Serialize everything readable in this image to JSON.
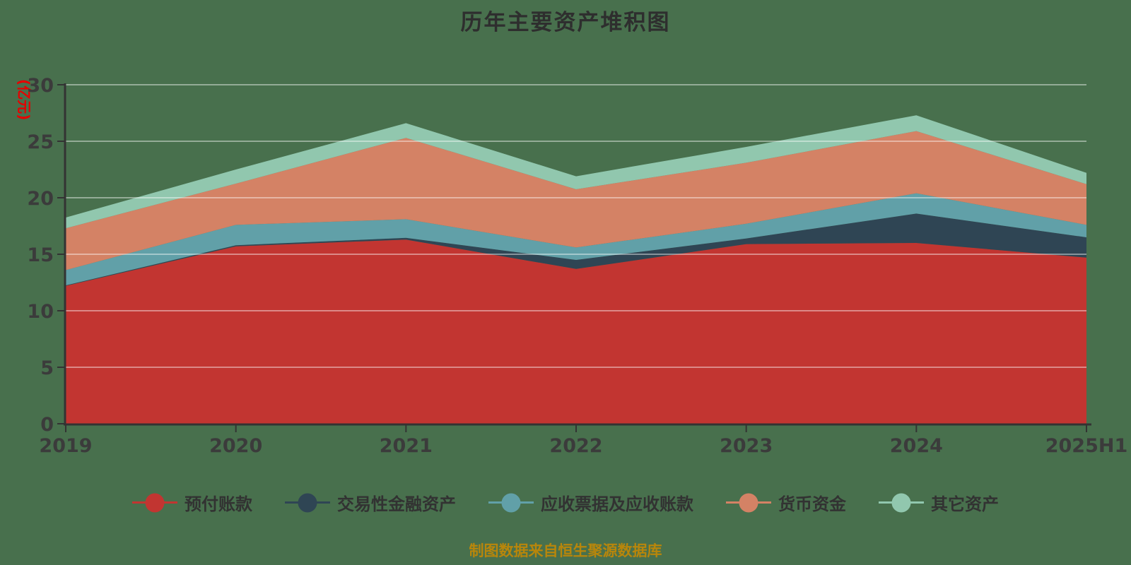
{
  "page": {
    "title": "历年主要资产堆积图",
    "y_axis_name": "(亿元)",
    "footer": "制图数据来自恒生聚源数据库",
    "background_color": "#48704d",
    "y_axis_name_color": "#e60000",
    "footer_color": "#b8860b",
    "axis_color": "#333333"
  },
  "chart_data": {
    "type": "area",
    "stacked": true,
    "title": "历年主要资产堆积图",
    "ylabel": "(亿元)",
    "xlabel": "",
    "categories": [
      "2019",
      "2020",
      "2021",
      "2022",
      "2023",
      "2024",
      "2025H1"
    ],
    "y_ticks": [
      0,
      5,
      10,
      15,
      20,
      25,
      30
    ],
    "ylim": [
      0,
      30
    ],
    "grid": true,
    "legend_position": "bottom",
    "series": [
      {
        "name": "预付账款",
        "color": "#c23531",
        "values": [
          12.2,
          15.7,
          16.3,
          13.7,
          15.9,
          16.0,
          14.7
        ]
      },
      {
        "name": "交易性金融资产",
        "color": "#2f4554",
        "values": [
          0.05,
          0.1,
          0.15,
          0.8,
          0.5,
          2.6,
          1.8
        ]
      },
      {
        "name": "应收票据及应收账款",
        "color": "#61a0a8",
        "values": [
          1.35,
          1.8,
          1.65,
          1.1,
          1.3,
          1.8,
          1.1
        ]
      },
      {
        "name": "货币资金",
        "color": "#d48265",
        "values": [
          3.7,
          3.65,
          7.2,
          5.15,
          5.4,
          5.5,
          3.6
        ]
      },
      {
        "name": "其它资产",
        "color": "#91c7ae",
        "values": [
          0.95,
          1.25,
          1.3,
          1.15,
          1.4,
          1.4,
          1.0
        ]
      }
    ],
    "stack_totals": [
      18.25,
      22.5,
      26.6,
      21.9,
      24.5,
      27.3,
      22.2
    ]
  }
}
